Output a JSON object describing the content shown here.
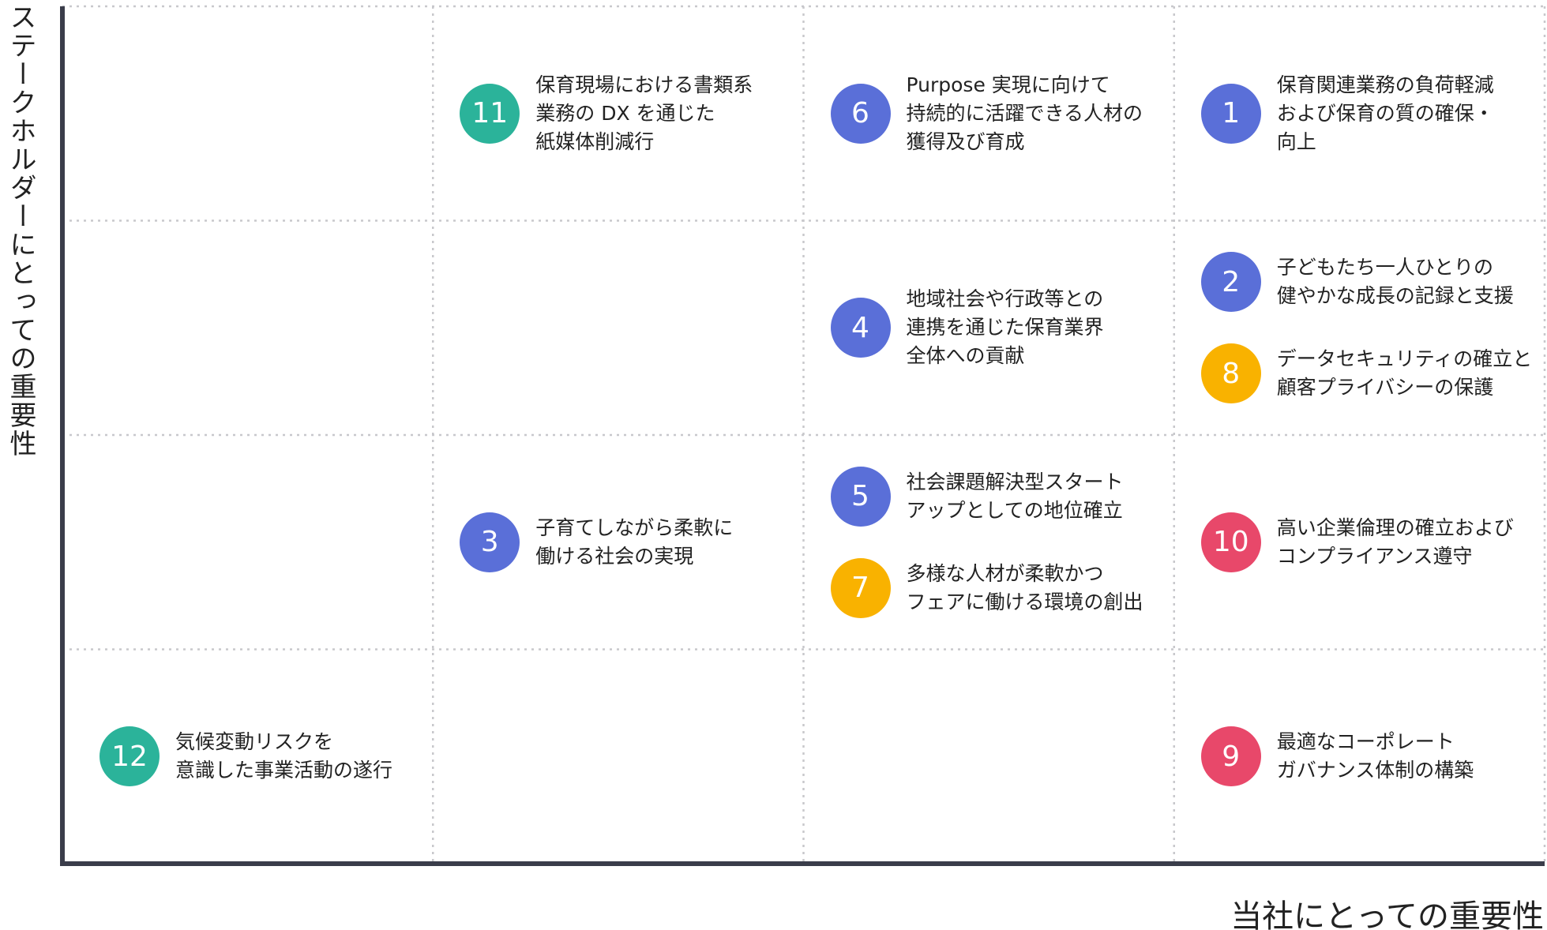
{
  "y_axis_label": "ステークホルダーにとっての重要性",
  "x_axis_label": "当社にとっての重要性",
  "grid": {
    "rows": [
      {
        "cells": [
          {
            "items": []
          },
          {
            "items": [
              {
                "number": 11,
                "color": "#2bb39a",
                "lines": [
                  "保育現場における書類系",
                  "業務の DX を通じた",
                  "紙媒体削減行"
                ]
              }
            ]
          },
          {
            "items": [
              {
                "number": 6,
                "color": "#5a6fd8",
                "lines": [
                  "Purpose 実現に向けて",
                  "持続的に活躍できる人材の",
                  "獲得及び育成"
                ]
              }
            ]
          },
          {
            "items": [
              {
                "number": 1,
                "color": "#5a6fd8",
                "lines": [
                  "保育関連業務の負荷軽減",
                  "および保育の質の確保・",
                  "向上"
                ]
              }
            ]
          }
        ]
      },
      {
        "cells": [
          {
            "items": []
          },
          {
            "items": []
          },
          {
            "items": [
              {
                "number": 4,
                "color": "#5a6fd8",
                "lines": [
                  "地域社会や行政等との",
                  "連携を通じた保育業界",
                  "全体への貢献"
                ]
              }
            ]
          },
          {
            "items": [
              {
                "number": 2,
                "color": "#5a6fd8",
                "lines": [
                  "子どもたち一人ひとりの",
                  "健やかな成長の記録と支援"
                ]
              },
              {
                "number": 8,
                "color": "#f9b200",
                "lines": [
                  "データセキュリティの確立と",
                  "顧客プライバシーの保護"
                ]
              }
            ]
          }
        ]
      },
      {
        "cells": [
          {
            "items": []
          },
          {
            "items": [
              {
                "number": 3,
                "color": "#5a6fd8",
                "lines": [
                  "子育てしながら柔軟に",
                  "働ける社会の実現"
                ]
              }
            ]
          },
          {
            "items": [
              {
                "number": 5,
                "color": "#5a6fd8",
                "lines": [
                  "社会課題解決型スタート",
                  "アップとしての地位確立"
                ]
              },
              {
                "number": 7,
                "color": "#f9b200",
                "lines": [
                  "多様な人材が柔軟かつ",
                  "フェアに働ける環境の創出"
                ]
              }
            ]
          },
          {
            "items": [
              {
                "number": 10,
                "color": "#e8486a",
                "lines": [
                  "高い企業倫理の確立および",
                  "コンプライアンス遵守"
                ]
              }
            ]
          }
        ]
      },
      {
        "cells": [
          {
            "items": [
              {
                "number": 12,
                "color": "#2bb39a",
                "lines": [
                  "気候変動リスクを",
                  "意識した事業活動の遂行"
                ]
              }
            ]
          },
          {
            "items": []
          },
          {
            "items": []
          },
          {
            "items": [
              {
                "number": 9,
                "color": "#e8486a",
                "lines": [
                  "最適なコーポレート",
                  "ガバナンス体制の構築"
                ]
              }
            ]
          }
        ]
      }
    ]
  }
}
